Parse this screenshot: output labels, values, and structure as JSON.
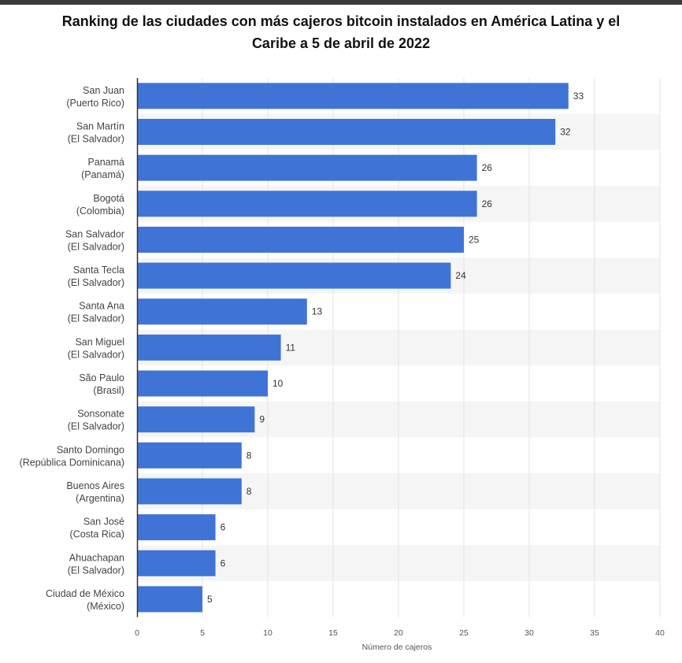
{
  "chart_data": {
    "type": "bar",
    "orientation": "horizontal",
    "title_lines": [
      "Ranking de las ciudades con más cajeros bitcoin instalados en América Latina y el",
      "Caribe a 5 de abril de 2022"
    ],
    "categories": [
      [
        "San Juan",
        "(Puerto Rico)"
      ],
      [
        "San Martín",
        "(El Salvador)"
      ],
      [
        "Panamá",
        "(Panamá)"
      ],
      [
        "Bogotá",
        "(Colombia)"
      ],
      [
        "San Salvador",
        "(El Salvador)"
      ],
      [
        "Santa Tecla",
        "(El Salvador)"
      ],
      [
        "Santa Ana",
        "(El Salvador)"
      ],
      [
        "San Miguel",
        "(El Salvador)"
      ],
      [
        "São Paulo",
        "(Brasil)"
      ],
      [
        "Sonsonate",
        "(El Salvador)"
      ],
      [
        "Santo Domingo",
        "(República Dominicana)"
      ],
      [
        "Buenos Aires",
        "(Argentina)"
      ],
      [
        "San José",
        "(Costa Rica)"
      ],
      [
        "Ahuachapan",
        "(El Salvador)"
      ],
      [
        "Ciudad de México",
        "(México)"
      ]
    ],
    "values": [
      33,
      32,
      26,
      26,
      25,
      24,
      13,
      11,
      10,
      9,
      8,
      8,
      6,
      6,
      5
    ],
    "xlabel": "Número de cajeros",
    "xlim": [
      0,
      40
    ],
    "xticks": [
      0,
      5,
      10,
      15,
      20,
      25,
      30,
      35,
      40
    ],
    "grid": true,
    "colors": {
      "bar": "#3f74d6",
      "band": "#f5f5f5",
      "grid": "#e3e3e3",
      "axis": "#333333"
    }
  }
}
